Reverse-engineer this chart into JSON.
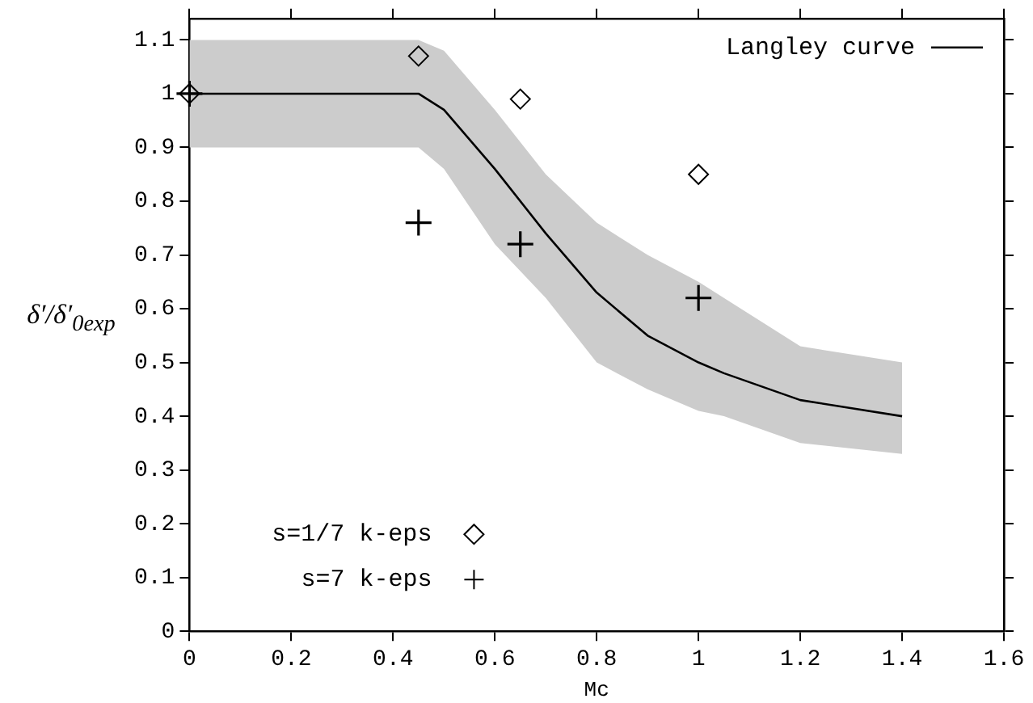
{
  "chart_data": {
    "type": "line",
    "xlabel": "Mc",
    "ylabel": "δ′/δ′$_{0exp}$",
    "xlim": [
      0,
      1.6
    ],
    "xticks": [
      0,
      0.2,
      0.4,
      0.6,
      0.8,
      1,
      1.2,
      1.4,
      1.6
    ],
    "ylim": [
      0,
      1.14
    ],
    "yticks": [
      0,
      0.1,
      0.2,
      0.3,
      0.4,
      0.5,
      0.6,
      0.7,
      0.8,
      0.9,
      1,
      1.1
    ],
    "grid": false,
    "legend": "top right",
    "series": [
      {
        "name": "Langley curve",
        "color": "#000000",
        "marker": "none",
        "x": [
          0,
          0.45,
          0.5,
          0.6,
          0.7,
          0.8,
          0.9,
          1.0,
          1.05,
          1.2,
          1.4
        ],
        "values": [
          1,
          1,
          0.97,
          0.86,
          0.74,
          0.63,
          0.55,
          0.5,
          0.48,
          0.43,
          0.4
        ],
        "lower": [
          0.9,
          0.9,
          0.86,
          0.72,
          0.62,
          0.5,
          0.45,
          0.41,
          0.4,
          0.35,
          0.33
        ],
        "upper": [
          1.1,
          1.1,
          1.08,
          0.97,
          0.85,
          0.76,
          0.7,
          0.65,
          0.62,
          0.53,
          0.5
        ]
      },
      {
        "name": "s=1/7 k-eps",
        "type": "scatter",
        "color": "#000000",
        "marker": "diamond",
        "x": [
          0,
          0.45,
          0.65,
          1
        ],
        "values": [
          1,
          1.07,
          0.99,
          0.85
        ]
      },
      {
        "name": "s=7 k-eps",
        "type": "scatter",
        "color": "#000000",
        "marker": "cross",
        "x": [
          0,
          0.45,
          0.65,
          1
        ],
        "values": [
          1,
          0.76,
          0.72,
          0.62
        ]
      }
    ]
  }
}
